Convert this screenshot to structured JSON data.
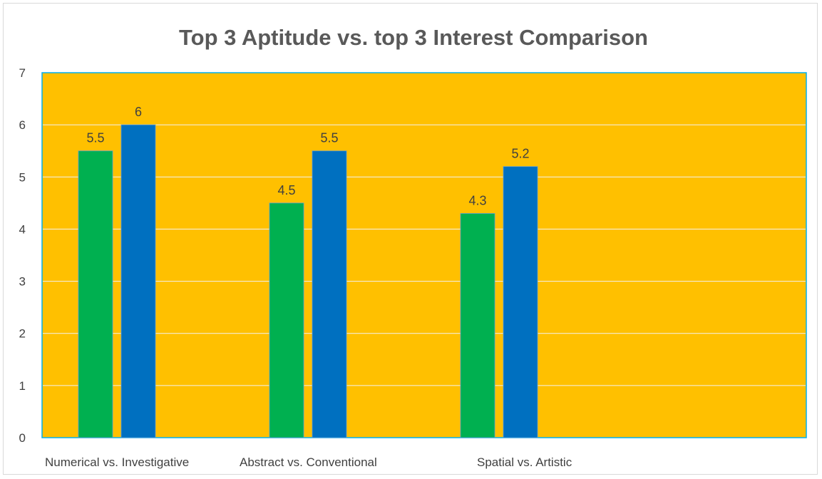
{
  "chart_data": {
    "type": "bar",
    "title": "Top 3 Aptitude vs. top 3 Interest Comparison",
    "xlabel": "",
    "ylabel": "",
    "categories": [
      "Numerical vs. Investigative",
      "Abstract vs. Conventional",
      "Spatial vs. Artistic",
      ""
    ],
    "series": [
      {
        "values": [
          5.5,
          4.5,
          4.3,
          null
        ],
        "color": "#00b050"
      },
      {
        "values": [
          6,
          5.5,
          5.2,
          null
        ],
        "color": "#0070c0"
      }
    ],
    "ylim": [
      0,
      7
    ],
    "yticks": [
      "0",
      "1",
      "2",
      "3",
      "4",
      "5",
      "6",
      "7"
    ],
    "grid": true,
    "legend": "none",
    "plot_background": "#ffc000",
    "plot_border_color": "#00b0f0",
    "gridline_color": "#f2f2f2"
  }
}
